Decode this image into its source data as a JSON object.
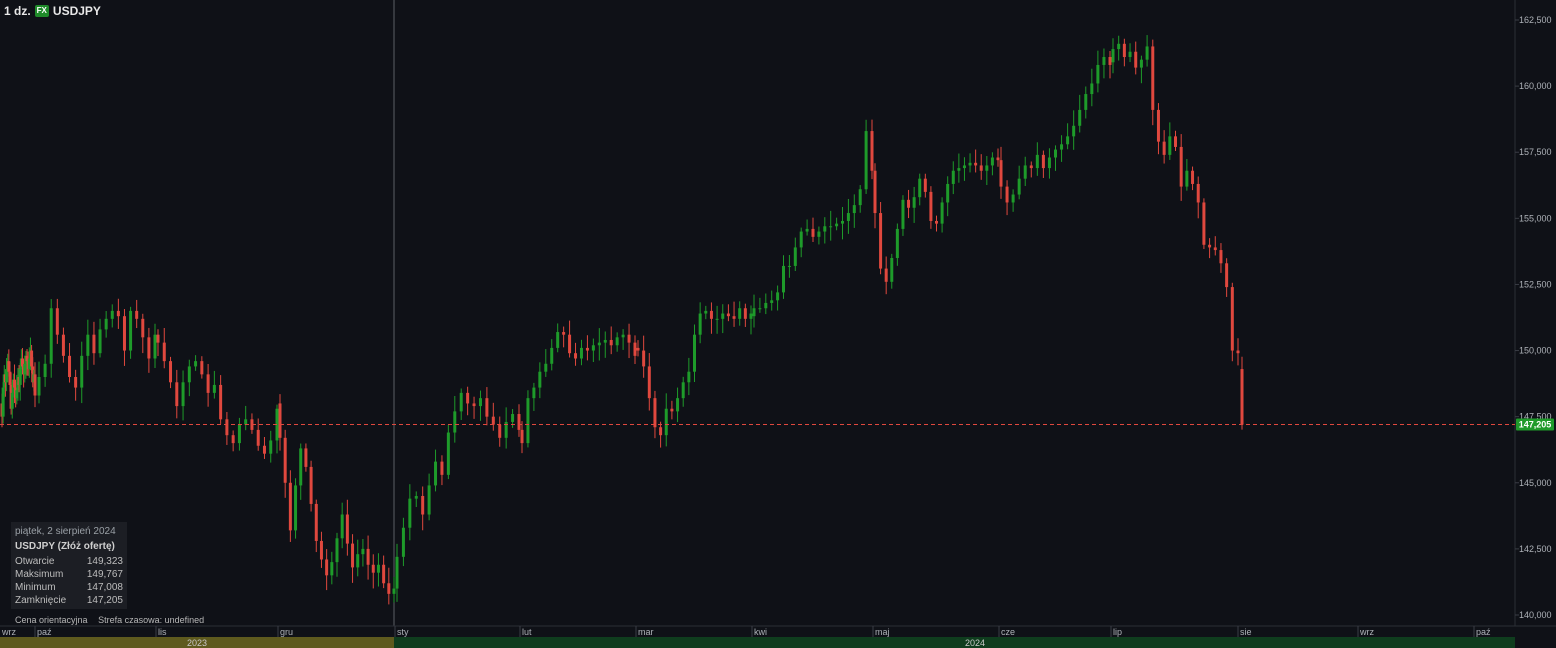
{
  "header": {
    "quantity": "1 dz.",
    "badge": "FX",
    "symbol": "USDJPY"
  },
  "tooltip": {
    "date": "piątek, 2 sierpień 2024",
    "title": "USDJPY (Złóż ofertę)",
    "rows": [
      {
        "label": "Otwarcie",
        "value": "149,323"
      },
      {
        "label": "Maksimum",
        "value": "149,767"
      },
      {
        "label": "Minimum",
        "value": "147,008"
      },
      {
        "label": "Zamknięcie",
        "value": "147,205"
      }
    ]
  },
  "footer": {
    "price_note": "Cena orientacyjna",
    "timezone": "Strefa czasowa: undefined"
  },
  "colors": {
    "up": "#1e9b2a",
    "down": "#e0483e",
    "background": "#0f1117",
    "last_price_bg": "#1f9a2a"
  },
  "chart_data": {
    "type": "candlestick",
    "y_ticks": [
      "162,500",
      "160,000",
      "157,500",
      "155,000",
      "152,500",
      "150,000",
      "147,500",
      "145,000",
      "142,500",
      "140,000"
    ],
    "ylim": [
      139.5,
      163.0
    ],
    "last_price": "147,205",
    "last_price_value": 147.205,
    "month_labels": [
      "wrz",
      "paź",
      "lis",
      "gru",
      "sty",
      "lut",
      "mar",
      "kwi",
      "maj",
      "cze",
      "lip",
      "sie",
      "wrz",
      "paź"
    ],
    "year_labels": [
      "2023",
      "2024"
    ],
    "series": [
      {
        "segment": "sep-2023",
        "start": 148.0,
        "end": 148.3,
        "values": [
          147.5,
          148.6,
          149.1,
          148.8,
          149.3,
          149.6,
          149.2,
          148.7,
          147.8,
          148.4,
          148.9,
          148.6,
          148.2,
          148.5,
          149.0,
          148.7,
          149.3,
          149.7,
          149.4,
          149.1,
          149.5,
          149.8,
          149.6,
          149.3,
          149.7,
          150.0,
          149.4,
          148.8,
          149.1,
          148.3
        ]
      },
      {
        "segment": "oct-2023",
        "start": 148.3,
        "end": 150.6,
        "values": [
          149.0,
          149.5,
          151.6,
          150.6,
          149.8,
          149.0,
          148.6,
          149.8,
          150.6,
          149.9,
          150.8,
          151.2,
          151.5,
          151.3,
          150.0,
          151.5,
          151.2,
          150.5,
          149.7,
          150.6
        ]
      },
      {
        "segment": "nov-2023",
        "start": 150.6,
        "end": 148.0,
        "values": [
          150.3,
          149.6,
          148.8,
          147.9,
          148.8,
          149.4,
          149.6,
          149.1,
          148.4,
          148.7,
          147.4,
          146.8,
          146.5,
          147.2,
          147.4,
          147.0,
          146.4,
          146.1,
          146.6,
          147.8
        ]
      },
      {
        "segment": "dec-2023",
        "start": 148.0,
        "end": 141.0,
        "values": [
          146.7,
          145.0,
          143.2,
          144.9,
          146.3,
          145.6,
          144.2,
          142.8,
          142.1,
          141.5,
          142.0,
          142.9,
          143.8,
          142.7,
          141.8,
          142.3,
          142.5,
          141.9,
          141.6,
          141.9,
          141.2,
          140.8,
          141.0
        ]
      },
      {
        "segment": "jan-2024",
        "start": 141.0,
        "end": 147.0,
        "values": [
          142.2,
          143.3,
          144.4,
          144.5,
          143.8,
          144.9,
          145.8,
          145.3,
          146.9,
          147.7,
          148.4,
          148.0,
          147.9,
          148.2,
          147.5,
          147.2,
          146.7,
          147.3,
          147.6,
          147.0
        ]
      },
      {
        "segment": "feb-2024",
        "start": 147.0,
        "end": 150.1,
        "values": [
          146.5,
          148.2,
          148.6,
          149.2,
          149.5,
          150.1,
          150.7,
          150.6,
          149.9,
          149.7,
          150.1,
          150.0,
          150.2,
          150.3,
          150.4,
          150.2,
          150.5,
          150.6,
          150.3,
          149.8
        ]
      },
      {
        "segment": "mar-2024",
        "start": 150.1,
        "end": 151.3,
        "values": [
          150.0,
          149.4,
          148.2,
          147.1,
          146.8,
          147.8,
          147.7,
          148.2,
          148.8,
          149.2,
          150.6,
          151.4,
          151.5,
          151.2,
          151.2,
          151.4,
          151.3,
          151.2,
          151.6,
          151.2,
          151.4
        ]
      },
      {
        "segment": "apr-2024",
        "start": 151.3,
        "end": 156.8,
        "values": [
          151.6,
          151.6,
          151.8,
          151.9,
          152.2,
          153.2,
          153.2,
          153.9,
          154.5,
          154.6,
          154.3,
          154.5,
          154.7,
          154.7,
          154.8,
          154.9,
          155.2,
          155.5,
          156.1,
          158.3,
          156.8
        ]
      },
      {
        "segment": "may-2024",
        "start": 156.8,
        "end": 157.2,
        "values": [
          155.2,
          153.1,
          152.6,
          153.5,
          154.6,
          155.7,
          155.4,
          155.8,
          156.5,
          156.0,
          154.9,
          154.8,
          155.6,
          156.3,
          156.8,
          156.9,
          157.0,
          157.1,
          157.0,
          156.8,
          157.0,
          157.3,
          157.2
        ]
      },
      {
        "segment": "jun-2024",
        "start": 157.2,
        "end": 160.9,
        "values": [
          156.2,
          155.6,
          155.9,
          156.5,
          157.0,
          156.9,
          157.4,
          156.9,
          157.3,
          157.6,
          157.8,
          158.1,
          158.5,
          159.1,
          159.7,
          160.1,
          160.8,
          161.1,
          160.8
        ]
      },
      {
        "segment": "jul-2024",
        "start": 160.9,
        "end": 149.9,
        "values": [
          161.4,
          161.6,
          161.1,
          161.3,
          160.7,
          161.0,
          161.5,
          159.1,
          157.9,
          157.4,
          158.1,
          157.7,
          156.2,
          156.8,
          156.3,
          155.6,
          154.0,
          153.9,
          153.8,
          153.3,
          152.4,
          150.0,
          149.9
        ]
      },
      {
        "segment": "aug-2024",
        "start": 149.3,
        "end": 147.2,
        "values": [
          147.2
        ]
      }
    ]
  }
}
